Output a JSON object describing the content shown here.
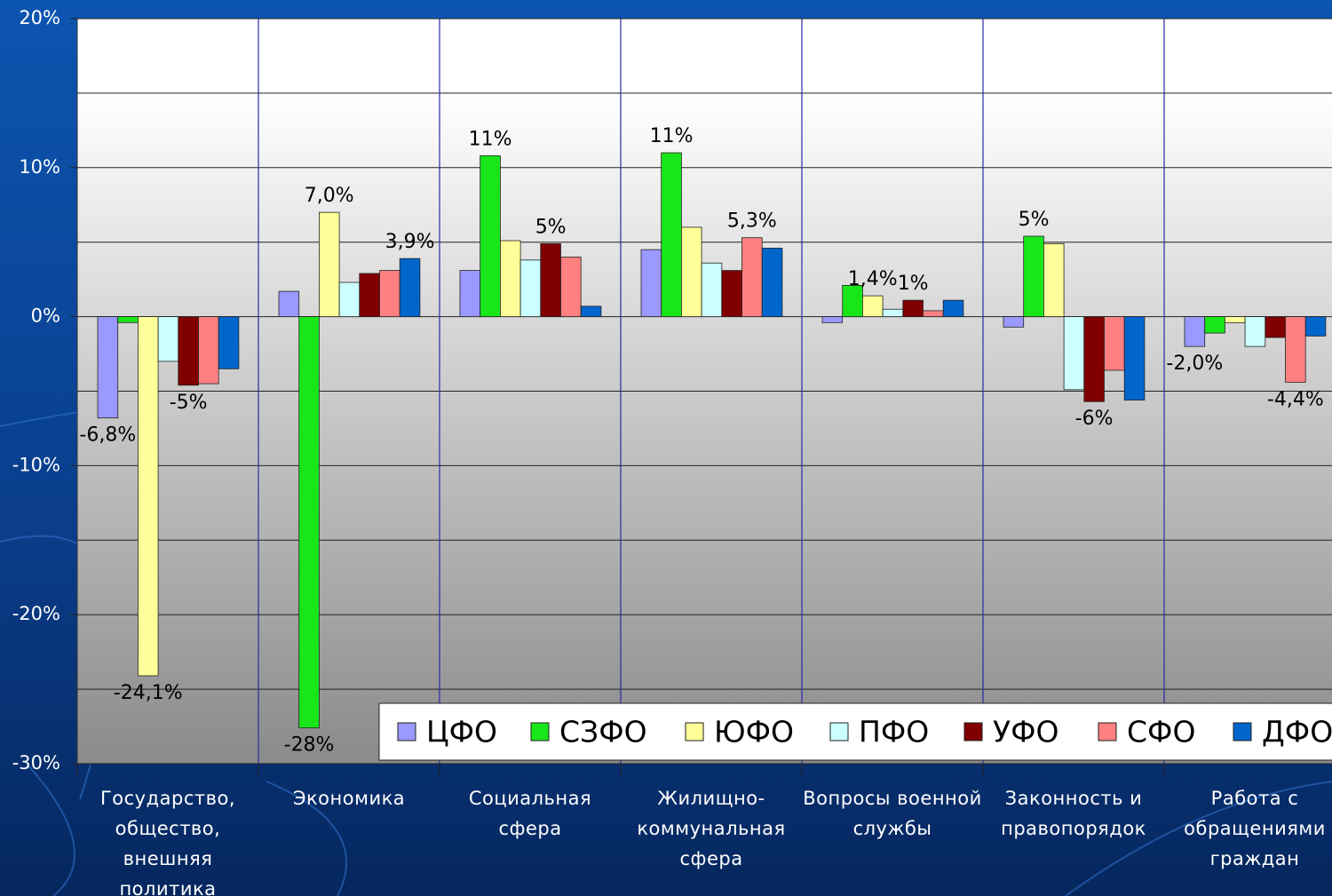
{
  "chart_data": {
    "type": "bar",
    "categories": [
      "Государство, общество, внешняя политика",
      "Экономика",
      "Социальная сфера",
      "Жилищно-коммунальная сфера",
      "Вопросы военной службы",
      "Законность и правопорядок",
      "Работа с обращениями граждан"
    ],
    "series": [
      {
        "name": "ЦФО",
        "color": "#9999ff",
        "values": [
          -6.8,
          1.7,
          3.1,
          4.5,
          -0.4,
          -0.7,
          -2.0
        ],
        "value_labels": [
          "-6,8%",
          null,
          null,
          null,
          null,
          null,
          "-2,0%"
        ]
      },
      {
        "name": "СЗФО",
        "color": "#19e619",
        "values": [
          -0.4,
          -27.6,
          10.8,
          11.0,
          2.1,
          5.4,
          -1.1
        ],
        "value_labels": [
          null,
          "-28%",
          "11%",
          "11%",
          null,
          "5%",
          null
        ]
      },
      {
        "name": "ЮФО",
        "color": "#ffff99",
        "values": [
          -24.1,
          7.0,
          5.1,
          6.0,
          1.4,
          4.9,
          -0.4
        ],
        "value_labels": [
          "-24,1%",
          "7,0%",
          null,
          null,
          "1,4%",
          null,
          null
        ]
      },
      {
        "name": "ПФО",
        "color": "#ccffff",
        "values": [
          -3.0,
          2.3,
          3.8,
          3.6,
          0.5,
          -4.9,
          -2.0
        ],
        "value_labels": [
          null,
          null,
          null,
          null,
          null,
          null,
          null
        ]
      },
      {
        "name": "УФО",
        "color": "#800000",
        "values": [
          -4.6,
          2.9,
          4.9,
          3.1,
          1.1,
          -5.7,
          -1.4
        ],
        "value_labels": [
          "-5%",
          null,
          "5%",
          null,
          "1%",
          "-6%",
          null
        ]
      },
      {
        "name": "СФО",
        "color": "#ff8080",
        "values": [
          -4.5,
          3.1,
          4.0,
          5.3,
          0.4,
          -3.6,
          -4.4
        ],
        "value_labels": [
          null,
          null,
          null,
          "5,3%",
          null,
          null,
          "-4,4%"
        ]
      },
      {
        "name": "ДФО",
        "color": "#0066cc",
        "values": [
          -3.5,
          3.9,
          0.7,
          4.6,
          1.1,
          -5.6,
          -1.3
        ],
        "value_labels": [
          null,
          "3,9%",
          null,
          null,
          null,
          null,
          null
        ]
      }
    ],
    "ylim": [
      -30,
      20
    ],
    "yticks": [
      {
        "value": 20,
        "label": "20%"
      },
      {
        "value": 10,
        "label": "10%"
      },
      {
        "value": 0,
        "label": "0%"
      },
      {
        "value": -10,
        "label": "-10%"
      },
      {
        "value": -20,
        "label": "-20%"
      },
      {
        "value": -30,
        "label": "-30%"
      }
    ],
    "y_minor_ticks": [
      15,
      5,
      -5,
      -15,
      -25
    ],
    "grid": true,
    "legend": "bottom-right"
  }
}
